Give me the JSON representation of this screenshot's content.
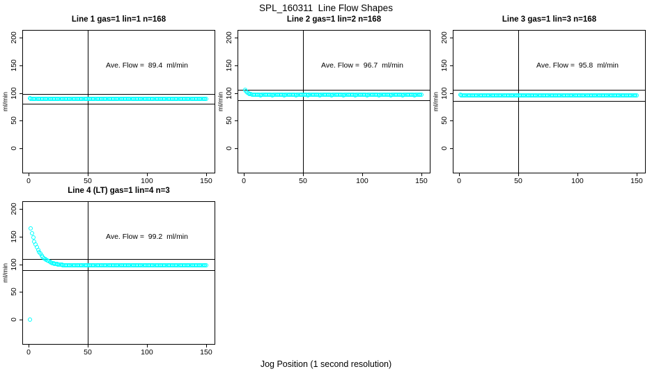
{
  "figure": {
    "title": "SPL_160311  Line Flow Shapes",
    "xlabel": "Jog Position (1 second resolution)",
    "background": "#ffffff",
    "point_color": "#00ffff",
    "line_color": "#000000"
  },
  "axes": {
    "ylabel": "ml/min",
    "x_ticks": [
      0,
      50,
      100,
      150
    ],
    "y_ticks": [
      0,
      50,
      100,
      150,
      200
    ],
    "xlim": [
      -4.7,
      157.1
    ],
    "ylim": [
      -43.8,
      212.8
    ],
    "grid": false,
    "layout": "2x3 grid, 4 panels used"
  },
  "chart_data": [
    {
      "type": "scatter",
      "title": "Line 1 gas=1 lin=1 n=168",
      "line": 1,
      "gas": 1,
      "lin": 1,
      "n": 168,
      "annotation": "Ave. Flow =  89.4  ml/min",
      "ave_flow": 89.4,
      "vline_x": 50,
      "hlines": [
        98.3,
        80.5
      ],
      "x0": 1,
      "dx": 1,
      "y": [
        90.8,
        89.9,
        89.4,
        89.6,
        89.3,
        89.5,
        89.2,
        89.6,
        89.4,
        89.3,
        89.5,
        89.4,
        89.4,
        89.6,
        89.3,
        89.5,
        89.2,
        89.6,
        89.4,
        89.3,
        89.5,
        89.4,
        89.4,
        89.6,
        89.3,
        89.5,
        89.2,
        89.6,
        89.4,
        89.3,
        89.5,
        89.4,
        89.4,
        89.6,
        89.3,
        89.5,
        89.2,
        89.6,
        89.4,
        89.3,
        89.5,
        89.4,
        89.4,
        89.6,
        89.3,
        89.5,
        89.2,
        89.6,
        89.4,
        89.3,
        89.5,
        89.4,
        89.4,
        89.6,
        89.3,
        89.5,
        89.2,
        89.6,
        89.4,
        89.3,
        89.5,
        89.4,
        89.4,
        89.6,
        89.3,
        89.5,
        89.2,
        89.6,
        89.4,
        89.3,
        89.5,
        89.4,
        89.4,
        89.6,
        89.3,
        89.5,
        89.2,
        89.6,
        89.4,
        89.3,
        89.5,
        89.4,
        89.4,
        89.6,
        89.3,
        89.5,
        89.2,
        89.6,
        89.4,
        89.3,
        89.5,
        89.4,
        89.4,
        89.6,
        89.3,
        89.5,
        89.2,
        89.6,
        89.4,
        89.3,
        89.5,
        89.4,
        89.4,
        89.6,
        89.3,
        89.5,
        89.2,
        89.6,
        89.4,
        89.3,
        89.5,
        89.4,
        89.4,
        89.6,
        89.3,
        89.5,
        89.2,
        89.6,
        89.4,
        89.3,
        89.5,
        89.4,
        89.4,
        89.6,
        89.3,
        89.5,
        89.2,
        89.6,
        89.4,
        89.3,
        89.5,
        89.4,
        89.4,
        89.6,
        89.3,
        89.5,
        89.2,
        89.6,
        89.4,
        89.3,
        89.5,
        89.4,
        89.4,
        89.6,
        89.3,
        89.5,
        89.2,
        89.6,
        89.4,
        89.3
      ]
    },
    {
      "type": "scatter",
      "title": "Line 2 gas=1 lin=2 n=168",
      "line": 2,
      "gas": 1,
      "lin": 2,
      "n": 168,
      "annotation": "Ave. Flow =  96.7  ml/min",
      "ave_flow": 96.7,
      "vline_x": 50,
      "hlines": [
        106.4,
        87.0
      ],
      "x0": 1,
      "dx": 1,
      "y": [
        105.5,
        103.2,
        101.2,
        99.6,
        98.6,
        97.8,
        97.3,
        97.0,
        96.8,
        96.6,
        96.8,
        96.5,
        96.7,
        96.4,
        96.8,
        96.6,
        96.5,
        96.7,
        96.6,
        96.6,
        96.8,
        96.5,
        96.7,
        96.4,
        96.8,
        96.6,
        96.5,
        96.7,
        96.6,
        96.6,
        96.8,
        96.5,
        96.7,
        96.4,
        96.8,
        96.6,
        96.5,
        96.7,
        96.6,
        96.6,
        96.8,
        96.5,
        96.7,
        96.4,
        96.8,
        96.6,
        96.5,
        96.7,
        96.6,
        96.6,
        96.8,
        96.5,
        96.7,
        96.4,
        96.8,
        96.6,
        96.5,
        96.7,
        96.6,
        96.6,
        96.8,
        96.5,
        96.7,
        96.4,
        96.8,
        96.6,
        96.5,
        96.7,
        96.6,
        96.6,
        96.8,
        96.5,
        96.7,
        96.4,
        96.8,
        96.6,
        96.5,
        96.7,
        96.6,
        96.6,
        96.8,
        96.5,
        96.7,
        96.4,
        96.8,
        96.6,
        96.5,
        96.7,
        96.6,
        96.6,
        96.8,
        96.5,
        96.7,
        96.4,
        96.8,
        96.6,
        96.5,
        96.7,
        96.6,
        96.6,
        96.8,
        96.5,
        96.7,
        96.4,
        96.8,
        96.6,
        96.5,
        96.7,
        96.6,
        96.6,
        96.8,
        96.5,
        96.7,
        96.4,
        96.8,
        96.6,
        96.5,
        96.7,
        96.6,
        96.6,
        96.8,
        96.5,
        96.7,
        96.4,
        96.8,
        96.6,
        96.5,
        96.7,
        96.6,
        96.6,
        96.8,
        96.5,
        96.7,
        96.4,
        96.8,
        96.6,
        96.5,
        96.7,
        96.6,
        96.6,
        96.8,
        96.5,
        96.7,
        96.4,
        96.8,
        96.6,
        96.5,
        96.7,
        96.6,
        96.6
      ]
    },
    {
      "type": "scatter",
      "title": "Line 3 gas=1 lin=3 n=168",
      "line": 3,
      "gas": 1,
      "lin": 3,
      "n": 168,
      "annotation": "Ave. Flow =  95.8  ml/min",
      "ave_flow": 95.8,
      "vline_x": 50,
      "hlines": [
        105.4,
        86.2
      ],
      "x0": 1,
      "dx": 1,
      "y": [
        97.4,
        96.3,
        95.7,
        95.9,
        95.6,
        95.8,
        95.5,
        95.9,
        95.7,
        95.6,
        95.8,
        95.7,
        95.7,
        95.9,
        95.6,
        95.8,
        95.5,
        95.9,
        95.7,
        95.6,
        95.8,
        95.7,
        95.7,
        95.9,
        95.6,
        95.8,
        95.5,
        95.9,
        95.7,
        95.6,
        95.8,
        95.7,
        95.7,
        95.9,
        95.6,
        95.8,
        95.5,
        95.9,
        95.7,
        95.6,
        95.8,
        95.7,
        95.7,
        95.9,
        95.6,
        95.8,
        95.5,
        95.9,
        95.7,
        95.6,
        95.8,
        95.7,
        95.7,
        95.9,
        95.6,
        95.8,
        95.5,
        95.9,
        95.7,
        95.6,
        95.8,
        95.7,
        95.7,
        95.9,
        95.6,
        95.8,
        95.5,
        95.9,
        95.7,
        95.6,
        95.8,
        95.7,
        95.7,
        95.9,
        95.6,
        95.8,
        95.5,
        95.9,
        95.7,
        95.6,
        95.8,
        95.7,
        95.7,
        95.9,
        95.6,
        95.8,
        95.5,
        95.9,
        95.7,
        95.6,
        95.8,
        95.7,
        95.7,
        95.9,
        95.6,
        95.8,
        95.5,
        95.9,
        95.7,
        95.6,
        95.8,
        95.7,
        95.7,
        95.9,
        95.6,
        95.8,
        95.5,
        95.9,
        95.7,
        95.6,
        95.8,
        95.7,
        95.7,
        95.9,
        95.6,
        95.8,
        95.5,
        95.9,
        95.7,
        95.6,
        95.8,
        95.7,
        95.7,
        95.9,
        95.6,
        95.8,
        95.5,
        95.9,
        95.7,
        95.6,
        95.8,
        95.7,
        95.7,
        95.9,
        95.6,
        95.8,
        95.5,
        95.9,
        95.7,
        95.6,
        95.8,
        95.7,
        95.7,
        95.9,
        95.6,
        95.8,
        95.5,
        95.9,
        95.7,
        95.6
      ]
    },
    {
      "type": "scatter",
      "title": "Line 4 (LT) gas=1 lin=4 n=3",
      "line": 4,
      "lt": true,
      "gas": 1,
      "lin": 4,
      "n": 3,
      "annotation": "Ave. Flow =  99.2  ml/min",
      "ave_flow": 99.2,
      "vline_x": 50,
      "hlines": [
        109.1,
        89.3
      ],
      "x0": 1,
      "dx": 1,
      "y": [
        0,
        165.4,
        156.3,
        148.5,
        141.7,
        135.8,
        130.7,
        126.3,
        122.4,
        119.1,
        116.2,
        113.7,
        111.5,
        109.6,
        108.0,
        106.6,
        105.4,
        104.3,
        103.4,
        102.6,
        101.9,
        101.3,
        100.8,
        100.4,
        100.0,
        99.7,
        99.4,
        99.1,
        98.9,
        98.7,
        98.4,
        98.1,
        98.3,
        98.0,
        98.2,
        97.9,
        98.3,
        98.1,
        98.0,
        98.2,
        98.4,
        98.1,
        98.3,
        98.0,
        98.2,
        97.9,
        98.3,
        98.1,
        98.0,
        98.2,
        98.4,
        98.1,
        98.3,
        98.0,
        98.2,
        97.9,
        98.3,
        98.1,
        98.0,
        98.2,
        98.4,
        98.1,
        98.3,
        98.0,
        98.2,
        97.9,
        98.3,
        98.1,
        98.0,
        98.2,
        98.4,
        98.1,
        98.3,
        98.0,
        98.2,
        97.9,
        98.3,
        98.1,
        98.0,
        98.2,
        98.4,
        98.1,
        98.3,
        98.0,
        98.2,
        97.9,
        98.3,
        98.1,
        98.0,
        98.2,
        98.4,
        98.1,
        98.3,
        98.0,
        98.2,
        97.9,
        98.3,
        98.1,
        98.0,
        98.2,
        98.4,
        98.1,
        98.3,
        98.0,
        98.2,
        97.9,
        98.3,
        98.1,
        98.0,
        98.2,
        98.4,
        98.1,
        98.3,
        98.0,
        98.2,
        97.9,
        98.3,
        98.1,
        98.0,
        98.2,
        98.4,
        98.1,
        98.3,
        98.0,
        98.2,
        97.9,
        98.3,
        98.1,
        98.0,
        98.2,
        98.4,
        98.1,
        98.3,
        98.0,
        98.2,
        97.9,
        98.3,
        98.1,
        98.0,
        98.2,
        98.4,
        98.1,
        98.3,
        98.0,
        98.2,
        97.9,
        98.3,
        98.1,
        98.0,
        98.2
      ]
    }
  ]
}
